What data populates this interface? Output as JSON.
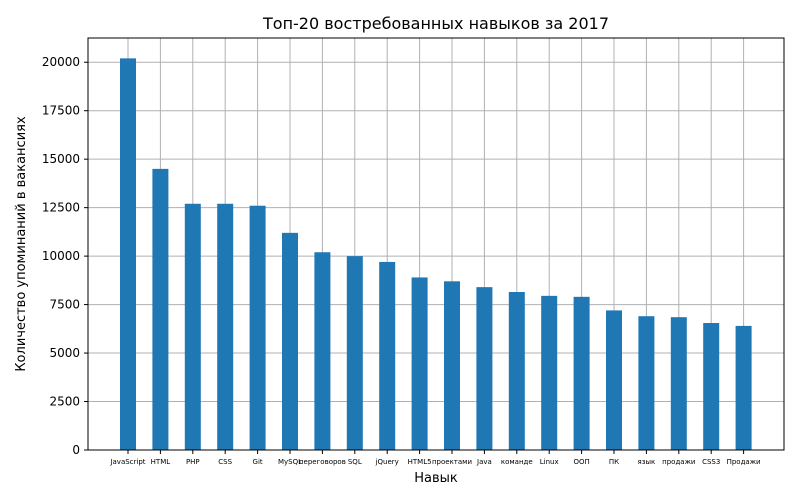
{
  "chart_data": {
    "type": "bar",
    "title": "Топ-20 востребованных навыков за 2017",
    "xlabel": "Навык",
    "ylabel": "Количество упоминаний в вакансиях",
    "categories": [
      "JavaScript",
      "HTML",
      "PHP",
      "CSS",
      "Git",
      "MySQL",
      "переговоров",
      "SQL",
      "jQuery",
      "HTML5",
      "проектами",
      "Java",
      "команде",
      "Linux",
      "ООП",
      "ПК",
      "язык",
      "продажи",
      "CSS3",
      "Продажи"
    ],
    "values": [
      20200,
      14500,
      12700,
      12700,
      12600,
      11200,
      10200,
      10000,
      9700,
      8900,
      8700,
      8400,
      8150,
      7950,
      7900,
      7200,
      6900,
      6850,
      6550,
      6400
    ],
    "ylim": [
      0,
      21250
    ],
    "yticks": [
      0,
      2500,
      5000,
      7500,
      10000,
      12500,
      15000,
      17500,
      20000
    ],
    "grid": true,
    "bar_color": "#1f77b4",
    "grid_color": "#b0b0b0"
  }
}
